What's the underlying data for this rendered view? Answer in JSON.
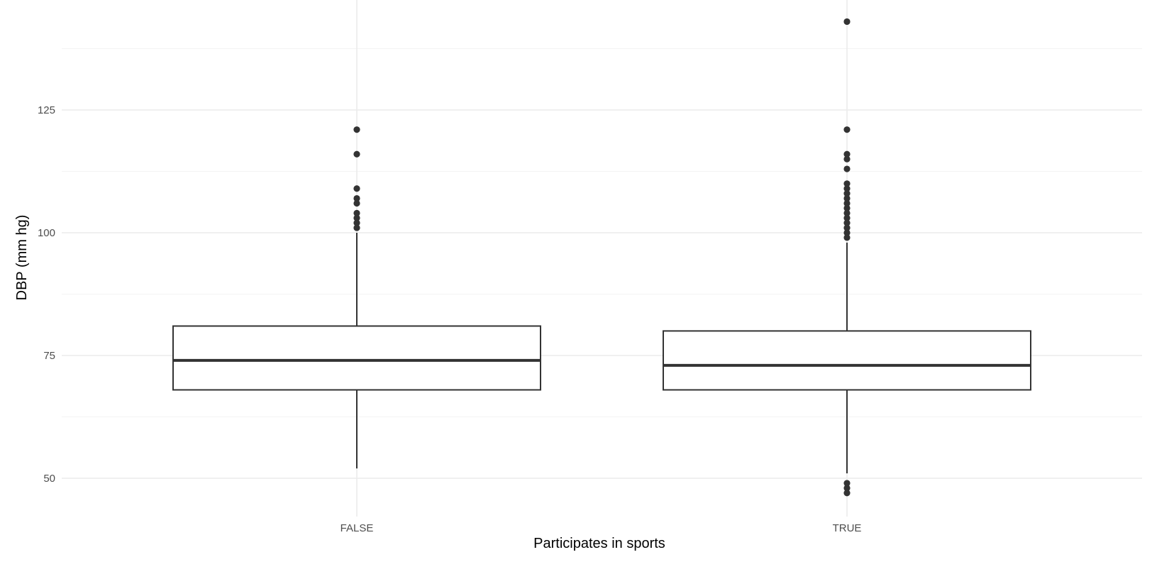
{
  "chart_data": {
    "type": "boxplot",
    "title": "",
    "xlabel": "Participates in sports",
    "ylabel": "DBP (mm hg)",
    "ylim": [
      43,
      147
    ],
    "y_ticks": [
      50,
      75,
      100,
      125
    ],
    "y_minor_ticks": [
      62.5,
      87.5,
      112.5,
      137.5
    ],
    "grid": true,
    "legend": "none",
    "categories": [
      "FALSE",
      "TRUE"
    ],
    "boxes": [
      {
        "category": "FALSE",
        "whisker_low": 52,
        "q1": 68,
        "median": 74,
        "q3": 81,
        "whisker_high": 100,
        "outliers": [
          101,
          102,
          103,
          104,
          106,
          107,
          109,
          116,
          121
        ]
      },
      {
        "category": "TRUE",
        "whisker_low": 51,
        "q1": 68,
        "median": 73,
        "q3": 80,
        "whisker_high": 98,
        "outliers": [
          47,
          48,
          49,
          99,
          100,
          101,
          102,
          103,
          104,
          105,
          106,
          107,
          108,
          109,
          110,
          113,
          115,
          116,
          121,
          143
        ]
      }
    ],
    "colors": {
      "box_stroke": "#333333",
      "point_fill": "#333333",
      "grid_major": "#ebebeb",
      "grid_minor": "#f3f3f3"
    }
  }
}
